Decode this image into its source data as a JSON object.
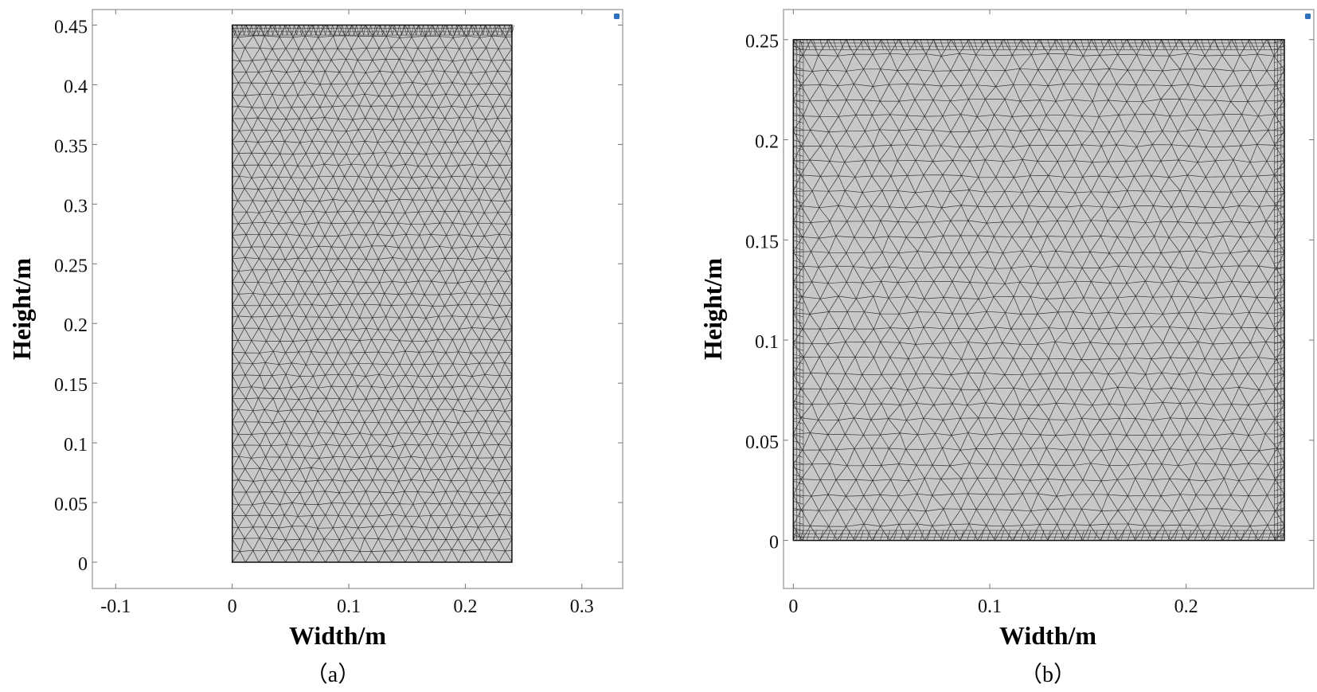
{
  "figures": [
    {
      "id": "a",
      "caption": "（a）",
      "xlabel": "Width/m",
      "ylabel": "Height/m",
      "xlim": [
        -0.12,
        0.335
      ],
      "ylim": [
        -0.022,
        0.463
      ],
      "x_ticks": [
        {
          "value": -0.1,
          "label": "-0.1"
        },
        {
          "value": 0,
          "label": "0"
        },
        {
          "value": 0.1,
          "label": "0.1"
        },
        {
          "value": 0.2,
          "label": "0.2"
        },
        {
          "value": 0.3,
          "label": "0.3"
        }
      ],
      "y_ticks": [
        {
          "value": 0,
          "label": "0"
        },
        {
          "value": 0.05,
          "label": "0.05"
        },
        {
          "value": 0.1,
          "label": "0.1"
        },
        {
          "value": 0.15,
          "label": "0.15"
        },
        {
          "value": 0.2,
          "label": "0.2"
        },
        {
          "value": 0.25,
          "label": "0.25"
        },
        {
          "value": 0.3,
          "label": "0.3"
        },
        {
          "value": 0.35,
          "label": "0.35"
        },
        {
          "value": 0.4,
          "label": "0.4"
        },
        {
          "value": 0.45,
          "label": "0.45"
        }
      ],
      "domain": {
        "x": [
          0,
          0.24
        ],
        "y": [
          0,
          0.45
        ]
      },
      "mesh": {
        "fill": "#c8c8c8",
        "line": "#333333"
      }
    },
    {
      "id": "b",
      "caption": "（b）",
      "xlabel": "Width/m",
      "ylabel": "Height/m",
      "xlim": [
        -0.005,
        0.265
      ],
      "ylim": [
        -0.024,
        0.265
      ],
      "x_ticks": [
        {
          "value": 0,
          "label": "0"
        },
        {
          "value": 0.1,
          "label": "0.1"
        },
        {
          "value": 0.2,
          "label": "0.2"
        }
      ],
      "y_ticks": [
        {
          "value": 0,
          "label": "0"
        },
        {
          "value": 0.05,
          "label": "0.05"
        },
        {
          "value": 0.1,
          "label": "0.1"
        },
        {
          "value": 0.15,
          "label": "0.15"
        },
        {
          "value": 0.2,
          "label": "0.2"
        },
        {
          "value": 0.25,
          "label": "0.25"
        }
      ],
      "domain": {
        "x": [
          0,
          0.25
        ],
        "y": [
          0,
          0.25
        ]
      },
      "mesh": {
        "fill": "#c8c8c8",
        "line": "#333333"
      }
    }
  ]
}
